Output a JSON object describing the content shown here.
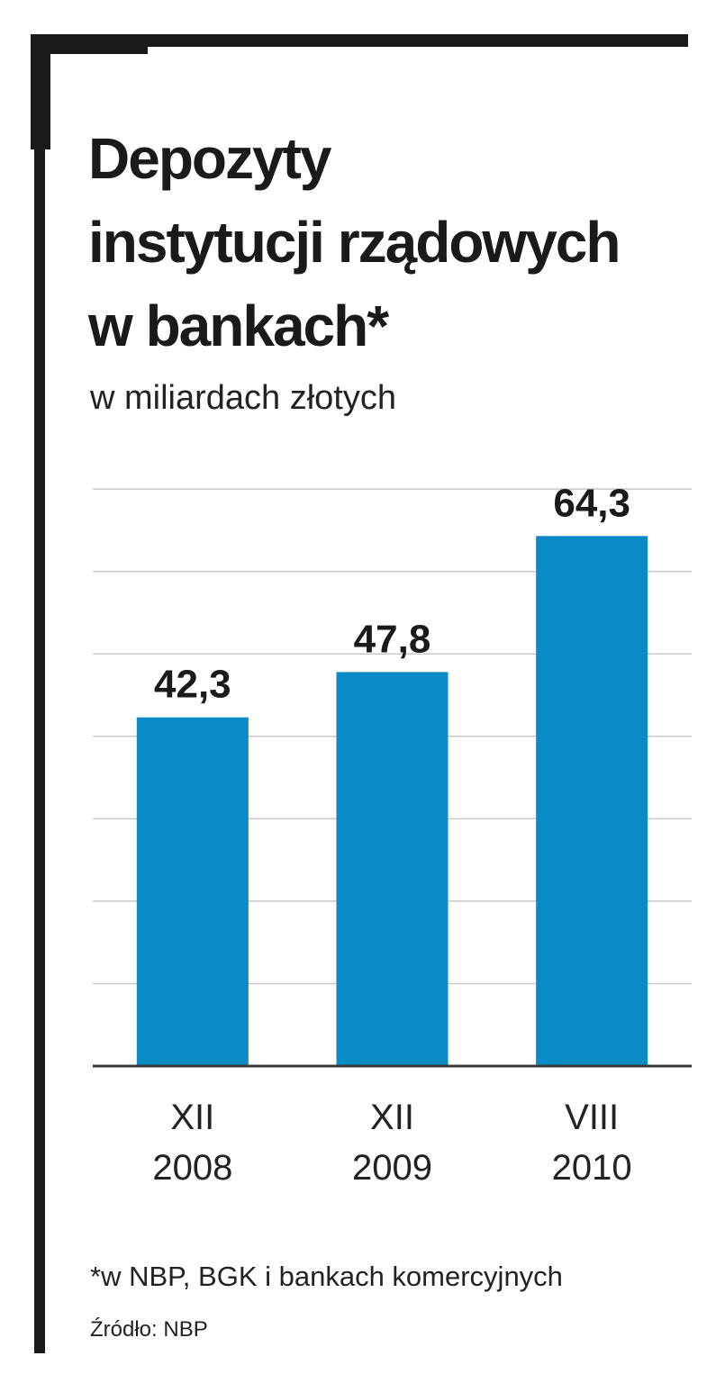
{
  "chart_data": {
    "type": "bar",
    "title_lines": [
      "Depozyty",
      "instytucji rządowych",
      "w bankach*"
    ],
    "subtitle": "w miliardach złotych",
    "categories": [
      [
        "XII",
        "2008"
      ],
      [
        "XII",
        "2009"
      ],
      [
        "VIII",
        "2010"
      ]
    ],
    "values": [
      42.3,
      47.8,
      64.3
    ],
    "value_labels": [
      "42,3",
      "47,8",
      "64,3"
    ],
    "ylim": [
      0,
      70
    ],
    "grid": true,
    "bar_color": "#0a8bc6"
  },
  "footnote": "*w NBP, BGK i bankach komercyjnych",
  "source": "Źródło: NBP"
}
